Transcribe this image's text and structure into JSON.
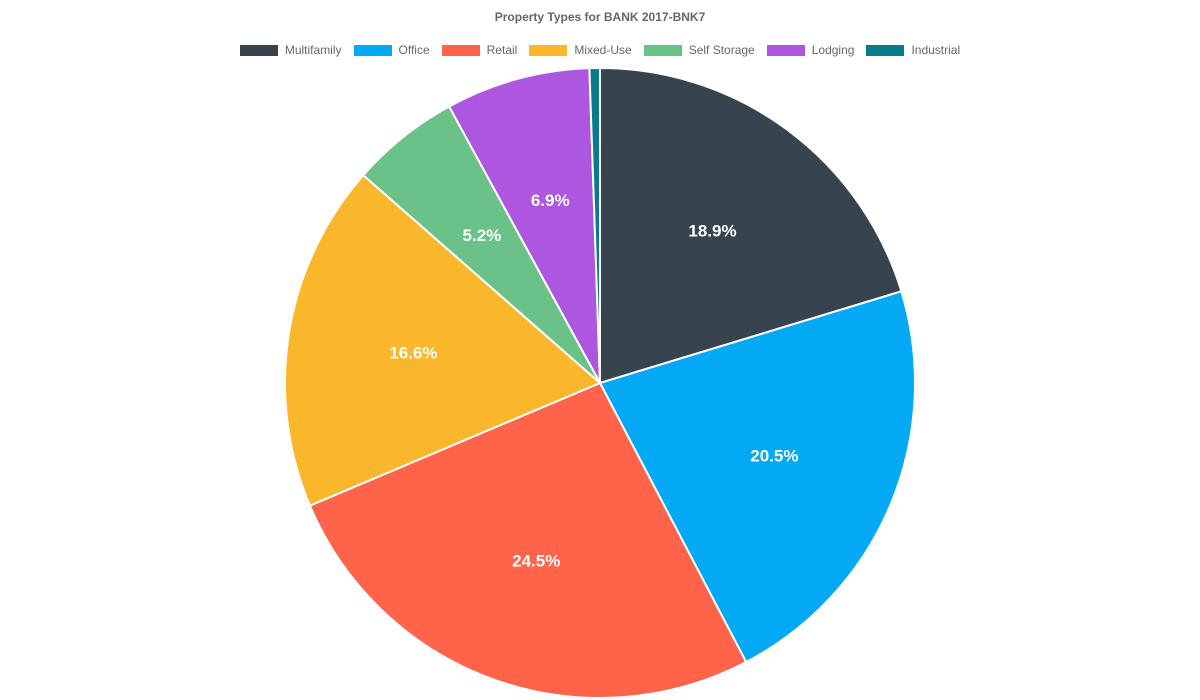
{
  "chart_data": {
    "type": "pie",
    "title": "Property Types for BANK 2017-BNK7",
    "legend_position": "top",
    "slices": [
      {
        "name": "Multifamily",
        "value": 18.9,
        "label": "18.9%",
        "color": "#37434f"
      },
      {
        "name": "Office",
        "value": 20.5,
        "label": "20.5%",
        "color": "#03a9f4"
      },
      {
        "name": "Retail",
        "value": 24.5,
        "label": "24.5%",
        "color": "#ff644b"
      },
      {
        "name": "Mixed-Use",
        "value": 16.6,
        "label": "16.6%",
        "color": "#fbb72b"
      },
      {
        "name": "Self Storage",
        "value": 5.2,
        "label": "5.2%",
        "color": "#6bc288"
      },
      {
        "name": "Lodging",
        "value": 6.9,
        "label": "6.9%",
        "color": "#ad56e0"
      },
      {
        "name": "Industrial",
        "value": 0.5,
        "label": "",
        "color": "#087b8c"
      }
    ]
  }
}
